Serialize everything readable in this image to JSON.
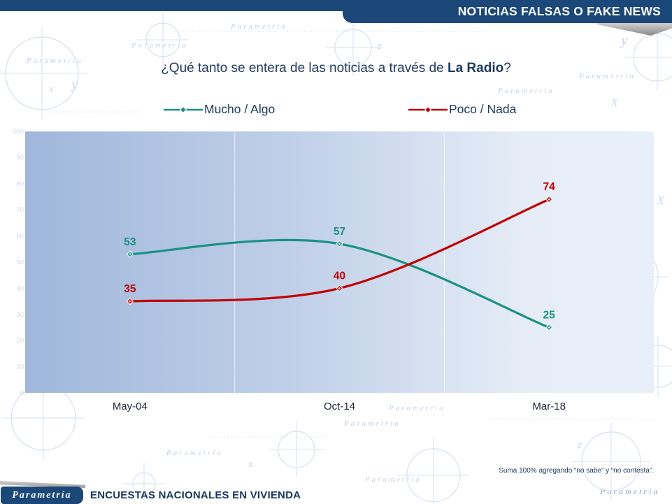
{
  "header": {
    "title": "NOTICIAS FALSAS O FAKE NEWS"
  },
  "question": {
    "prefix": "¿Qué tanto se entera de las noticias a través de ",
    "highlight": "La Radio",
    "suffix": "?"
  },
  "chart_data": {
    "type": "line",
    "categories": [
      "May-04",
      "Oct-14",
      "Mar-18"
    ],
    "series": [
      {
        "name": "Mucho / Algo",
        "color": "#1a9184",
        "values": [
          53,
          57,
          25
        ]
      },
      {
        "name": "Poco / Nada",
        "color": "#c00000",
        "values": [
          35,
          40,
          74
        ]
      }
    ],
    "ylim": [
      0,
      100
    ],
    "ytick_step": 10,
    "grid": "vertical-category-boundaries",
    "legend_position": "top",
    "marker": "diamond",
    "smooth": true,
    "data_labels": true
  },
  "footnote": "Suma 100% agregando “no sabe” y “no contesta”.",
  "footer": {
    "logo": "Parametría",
    "tagline": "ENCUESTAS NACIONALES EN VIVIENDA"
  },
  "watermark": {
    "text": "Parametría",
    "letters": [
      "x",
      "y",
      "z",
      "X"
    ]
  },
  "colors": {
    "navy": "#1b4878",
    "title_text": "#1f3a60",
    "axis_label": "#1c2430",
    "ytick_faint": "#a9bedb"
  }
}
